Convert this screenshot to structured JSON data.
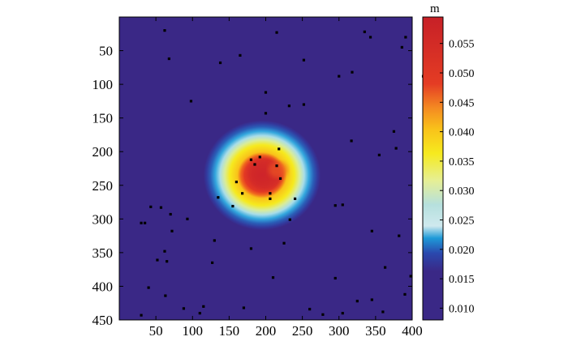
{
  "chart_data": {
    "type": "heatmap",
    "x_ticks": [
      50,
      100,
      150,
      200,
      250,
      300,
      350,
      400
    ],
    "y_ticks": [
      50,
      100,
      150,
      200,
      250,
      300,
      350,
      400,
      450
    ],
    "xlim": [
      0,
      400
    ],
    "ylim": [
      0,
      450
    ],
    "y_inverted": true,
    "colorbar": {
      "unit": "m",
      "ticks": [
        "0.010",
        "0.015",
        "0.020",
        "0.025",
        "0.030",
        "0.035",
        "0.040",
        "0.045",
        "0.050",
        "0.055"
      ],
      "range": [
        0.008,
        0.0595
      ],
      "colors": [
        "#3a2886",
        "#2a3fa6",
        "#1e9ad8",
        "#8fd0e6",
        "#e6ef95",
        "#f6ea1e",
        "#f9c21a",
        "#f48a22",
        "#e43c24",
        "#c72027"
      ]
    },
    "field": {
      "center": [
        195,
        235
      ],
      "background_value": 0.012,
      "peak_value": 0.058,
      "radius": 80
    },
    "missing_points": [
      [
        62,
        20
      ],
      [
        215,
        23
      ],
      [
        335,
        22
      ],
      [
        343,
        30
      ],
      [
        391,
        30
      ],
      [
        386,
        45
      ],
      [
        68,
        62
      ],
      [
        165,
        57
      ],
      [
        138,
        68
      ],
      [
        252,
        64
      ],
      [
        318,
        82
      ],
      [
        415,
        88
      ],
      [
        300,
        88
      ],
      [
        200,
        112
      ],
      [
        98,
        125
      ],
      [
        252,
        130
      ],
      [
        232,
        132
      ],
      [
        200,
        143
      ],
      [
        375,
        170
      ],
      [
        317,
        184
      ],
      [
        378,
        195
      ],
      [
        355,
        205
      ],
      [
        218,
        196
      ],
      [
        192,
        208
      ],
      [
        180,
        212
      ],
      [
        215,
        221
      ],
      [
        185,
        219
      ],
      [
        220,
        240
      ],
      [
        160,
        245
      ],
      [
        168,
        262
      ],
      [
        206,
        262
      ],
      [
        206,
        270
      ],
      [
        240,
        270
      ],
      [
        135,
        268
      ],
      [
        295,
        280
      ],
      [
        305,
        279
      ],
      [
        155,
        281
      ],
      [
        43,
        282
      ],
      [
        57,
        283
      ],
      [
        70,
        293
      ],
      [
        30,
        306
      ],
      [
        35,
        306
      ],
      [
        93,
        300
      ],
      [
        233,
        301
      ],
      [
        345,
        318
      ],
      [
        382,
        325
      ],
      [
        72,
        318
      ],
      [
        130,
        332
      ],
      [
        225,
        336
      ],
      [
        180,
        344
      ],
      [
        62,
        348
      ],
      [
        52,
        361
      ],
      [
        65,
        363
      ],
      [
        127,
        365
      ],
      [
        363,
        372
      ],
      [
        295,
        388
      ],
      [
        210,
        387
      ],
      [
        398,
        385
      ],
      [
        40,
        402
      ],
      [
        63,
        414
      ],
      [
        88,
        433
      ],
      [
        115,
        430
      ],
      [
        170,
        432
      ],
      [
        260,
        434
      ],
      [
        305,
        440
      ],
      [
        278,
        442
      ],
      [
        110,
        440
      ],
      [
        30,
        443
      ],
      [
        325,
        422
      ],
      [
        345,
        420
      ],
      [
        390,
        412
      ],
      [
        360,
        438
      ]
    ]
  }
}
